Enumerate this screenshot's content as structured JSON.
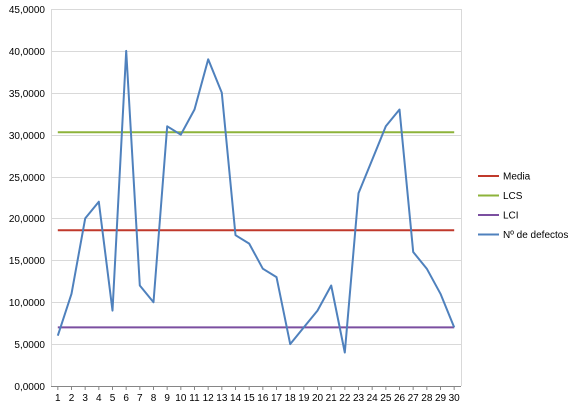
{
  "chart_data": {
    "type": "line",
    "x": [
      1,
      2,
      3,
      4,
      5,
      6,
      7,
      8,
      9,
      10,
      11,
      12,
      13,
      14,
      15,
      16,
      17,
      18,
      19,
      20,
      21,
      22,
      23,
      24,
      25,
      26,
      27,
      28,
      29,
      30
    ],
    "x_tick_labels": [
      "1",
      "2",
      "3",
      "4",
      "5",
      "6",
      "7",
      "8",
      "9",
      "10",
      "11",
      "12",
      "13",
      "14",
      "15",
      "16",
      "17",
      "18",
      "19",
      "20",
      "21",
      "22",
      "23",
      "24",
      "25",
      "26",
      "27",
      "28",
      "29",
      "30"
    ],
    "ylim": [
      0,
      45
    ],
    "y_ticks": [
      0,
      5,
      10,
      15,
      20,
      25,
      30,
      35,
      40,
      45
    ],
    "y_tick_labels": [
      "0,0000",
      "5,0000",
      "10,0000",
      "15,0000",
      "20,0000",
      "25,0000",
      "30,0000",
      "35,0000",
      "40,0000",
      "45,0000"
    ],
    "grid": "horizontal",
    "legend_position": "right",
    "series": [
      {
        "name": "Media",
        "color": "#C0392B",
        "values": [
          18.6,
          18.6,
          18.6,
          18.6,
          18.6,
          18.6,
          18.6,
          18.6,
          18.6,
          18.6,
          18.6,
          18.6,
          18.6,
          18.6,
          18.6,
          18.6,
          18.6,
          18.6,
          18.6,
          18.6,
          18.6,
          18.6,
          18.6,
          18.6,
          18.6,
          18.6,
          18.6,
          18.6,
          18.6,
          18.6
        ]
      },
      {
        "name": "LCS",
        "color": "#8DB33A",
        "values": [
          30.3,
          30.3,
          30.3,
          30.3,
          30.3,
          30.3,
          30.3,
          30.3,
          30.3,
          30.3,
          30.3,
          30.3,
          30.3,
          30.3,
          30.3,
          30.3,
          30.3,
          30.3,
          30.3,
          30.3,
          30.3,
          30.3,
          30.3,
          30.3,
          30.3,
          30.3,
          30.3,
          30.3,
          30.3,
          30.3
        ]
      },
      {
        "name": "LCI",
        "color": "#7B4FA0",
        "values": [
          7,
          7,
          7,
          7,
          7,
          7,
          7,
          7,
          7,
          7,
          7,
          7,
          7,
          7,
          7,
          7,
          7,
          7,
          7,
          7,
          7,
          7,
          7,
          7,
          7,
          7,
          7,
          7,
          7,
          7
        ]
      },
      {
        "name": "Nº de defectos",
        "color": "#4F81BD",
        "values": [
          6,
          11,
          20,
          22,
          9,
          40,
          12,
          10,
          31,
          30,
          33,
          39,
          35,
          18,
          17,
          14,
          13,
          5,
          7,
          9,
          12,
          4,
          23,
          27,
          31,
          33,
          16,
          14,
          11,
          7
        ]
      }
    ]
  }
}
